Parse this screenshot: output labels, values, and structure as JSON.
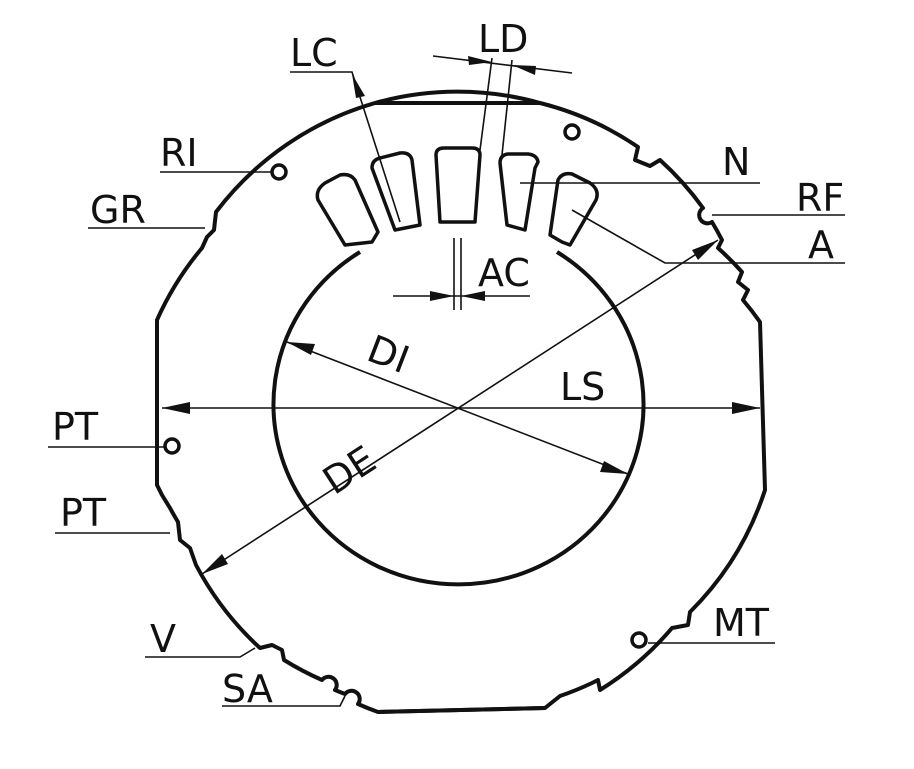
{
  "labels": {
    "LC": "LC",
    "LD": "LD",
    "RI": "RI",
    "N": "N",
    "RF": "RF",
    "GR": "GR",
    "A": "A",
    "AC": "AC",
    "DI": "DI",
    "LS": "LS",
    "PT_upper": "PT",
    "PT_lower": "PT",
    "DE": "DE",
    "V": "V",
    "SA": "SA",
    "MT": "MT"
  }
}
